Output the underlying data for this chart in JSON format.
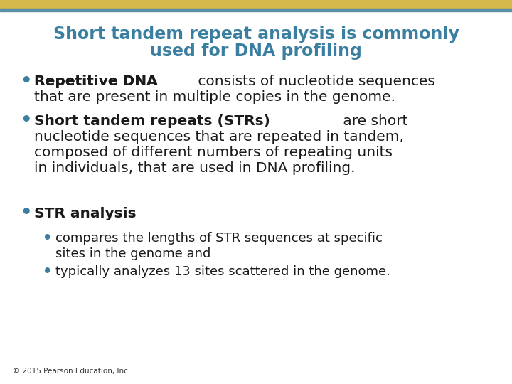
{
  "background_color": "#ffffff",
  "top_bar_gold": "#d4b84a",
  "top_bar_blue": "#5b8fa8",
  "title_line1": "Short tandem repeat analysis is commonly",
  "title_line2": "used for DNA profiling",
  "title_color": "#3a7fa0",
  "bullet_color": "#3a7fa0",
  "text_color": "#1a1a1a",
  "footer": "© 2015 Pearson Education, Inc.",
  "footer_color": "#333333",
  "b1_bold": "Repetitive DNA",
  "b1_rest1": " consists of nucleotide sequences",
  "b1_rest2": "that are present in multiple copies in the genome.",
  "b2_bold": "Short tandem repeats (STRs)",
  "b2_rest1": " are short",
  "b2_rest2": "nucleotide sequences that are repeated in tandem,",
  "b2_rest3": "composed of different numbers of repeating units",
  "b2_rest4": "in individuals, that are used in DNA profiling.",
  "b3_bold": "STR analysis",
  "sb1_1": "compares the lengths of STR sequences at specific",
  "sb1_2": "sites in the genome and",
  "sb2": "typically analyzes 13 sites scattered in the genome.",
  "title_fontsize": 17,
  "main_fontsize": 14.5,
  "sub_fontsize": 13
}
